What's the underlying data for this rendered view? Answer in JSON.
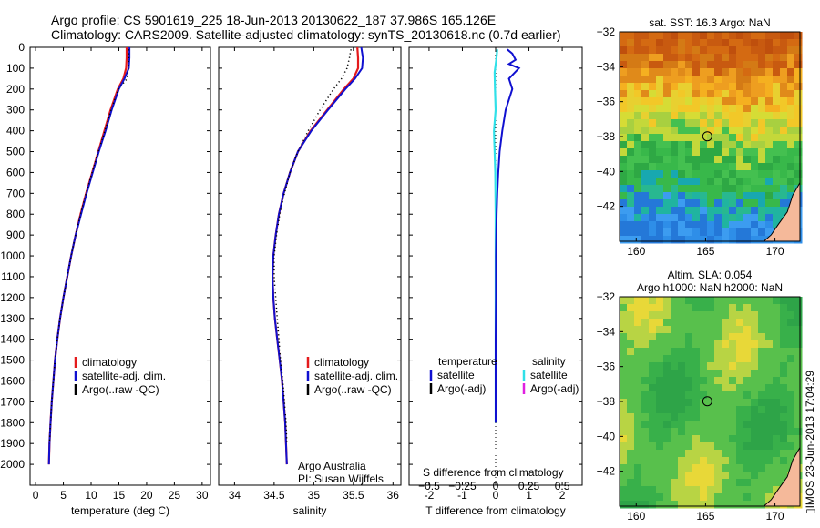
{
  "header": {
    "title_line1": "Argo profile: CS 5901619_225 18-Jun-2013 20130622_187 37.986S 165.126E",
    "title_line2": "Climatology: CARS2009. Satellite-adjusted climatology: synTS_20130618.nc (0.7d earlier)"
  },
  "colors": {
    "climatology": "#e41a1c",
    "satellite": "#1010d0",
    "argo": "#000000",
    "salinity_satellite": "#30e0e8",
    "salinity_argo": "#e020e0",
    "land": "#f5b99a"
  },
  "chart_data": [
    {
      "name_id": "temperature",
      "type": "line",
      "xlabel": "temperature (deg C)",
      "ylabel": "",
      "xlim": [
        -1,
        31.5
      ],
      "ylim": [
        2100,
        0
      ],
      "xticks": [
        0,
        5,
        10,
        15,
        20,
        25,
        30
      ],
      "yticks": [
        0,
        100,
        200,
        300,
        400,
        500,
        600,
        700,
        800,
        900,
        1000,
        1100,
        1200,
        1300,
        1400,
        1500,
        1600,
        1700,
        1800,
        1900,
        2000
      ],
      "legend": [
        "climatology",
        "satellite-adj. clim.",
        "Argo(..raw -QC)"
      ],
      "legend_position": "lower-right",
      "series": [
        {
          "name": "climatology",
          "x": [
            16.4,
            16.4,
            16.3,
            15.8,
            14.8,
            13.5,
            12.4,
            11.3,
            10.2,
            9.1,
            8.1,
            7.2,
            6.4,
            5.7,
            5.0,
            4.4,
            3.9,
            3.5,
            3.2,
            2.9,
            2.7,
            2.5,
            2.4
          ],
          "y": [
            0,
            50,
            100,
            150,
            200,
            300,
            400,
            500,
            600,
            700,
            800,
            900,
            1000,
            1100,
            1200,
            1300,
            1400,
            1500,
            1600,
            1700,
            1800,
            1900,
            2000
          ]
        },
        {
          "name": "satellite-adj. clim.",
          "x": [
            16.9,
            16.9,
            16.8,
            16.0,
            15.0,
            13.7,
            12.6,
            11.4,
            10.3,
            9.2,
            8.2,
            7.2,
            6.4,
            5.7,
            5.0,
            4.4,
            3.9,
            3.5,
            3.2,
            2.9,
            2.7,
            2.5,
            2.4
          ],
          "y": [
            0,
            50,
            100,
            150,
            200,
            300,
            400,
            500,
            600,
            700,
            800,
            900,
            1000,
            1100,
            1200,
            1300,
            1400,
            1500,
            1600,
            1700,
            1800,
            1900,
            2000
          ]
        },
        {
          "name": "Argo(..raw -QC)",
          "x": [
            16.8,
            16.8,
            16.7,
            16.5,
            14.9,
            13.6,
            12.5,
            11.3,
            10.2,
            9.1,
            8.1,
            7.2,
            6.4,
            5.7,
            5.0,
            4.4,
            3.9,
            3.5,
            3.2,
            2.9,
            2.7,
            2.5
          ],
          "y": [
            10,
            50,
            100,
            150,
            200,
            300,
            400,
            500,
            600,
            700,
            800,
            900,
            1000,
            1100,
            1200,
            1300,
            1400,
            1500,
            1600,
            1700,
            1800,
            1900
          ]
        }
      ]
    },
    {
      "name_id": "salinity",
      "type": "line",
      "xlabel": "salinity",
      "ylabel": "",
      "xlim": [
        33.8,
        36.1
      ],
      "ylim": [
        2100,
        0
      ],
      "xticks": [
        34,
        34.5,
        35,
        35.5,
        36
      ],
      "xtick_labels": [
        "34",
        "34.5",
        "35",
        "35.5",
        "36"
      ],
      "legend": [
        "climatology",
        "satellite-adj. clim.",
        "Argo(..raw -QC)"
      ],
      "legend_position": "lower-right",
      "annotations": [
        "Argo Australia",
        "PI: Susan Wijffels"
      ],
      "series": [
        {
          "name": "climatology",
          "x": [
            35.55,
            35.56,
            35.56,
            35.5,
            35.38,
            35.17,
            34.96,
            34.8,
            34.7,
            34.62,
            34.56,
            34.52,
            34.49,
            34.48,
            34.49,
            34.51,
            34.54,
            34.57,
            34.6,
            34.62,
            34.64,
            34.65,
            34.66
          ],
          "y": [
            0,
            50,
            100,
            150,
            200,
            300,
            400,
            500,
            600,
            700,
            800,
            900,
            1000,
            1100,
            1200,
            1300,
            1400,
            1500,
            1600,
            1700,
            1800,
            1900,
            2000
          ]
        },
        {
          "name": "satellite-adj. clim.",
          "x": [
            35.6,
            35.62,
            35.61,
            35.52,
            35.4,
            35.18,
            34.97,
            34.8,
            34.7,
            34.62,
            34.56,
            34.52,
            34.49,
            34.48,
            34.49,
            34.51,
            34.54,
            34.57,
            34.6,
            34.62,
            34.64,
            34.65,
            34.66
          ],
          "y": [
            0,
            50,
            100,
            150,
            200,
            300,
            400,
            500,
            600,
            700,
            800,
            900,
            1000,
            1100,
            1200,
            1300,
            1400,
            1500,
            1600,
            1700,
            1800,
            1900,
            2000
          ]
        },
        {
          "name": "Argo(..raw -QC)",
          "x": [
            35.47,
            35.45,
            35.42,
            35.35,
            35.25,
            35.08,
            34.93,
            34.8,
            34.7,
            34.63,
            34.57,
            34.53,
            34.5,
            34.5,
            34.52,
            34.54,
            34.56,
            34.58,
            34.61,
            34.63,
            34.65,
            34.66
          ],
          "y": [
            10,
            50,
            100,
            150,
            200,
            300,
            400,
            500,
            600,
            700,
            800,
            900,
            1000,
            1100,
            1200,
            1300,
            1400,
            1500,
            1600,
            1700,
            1800,
            1900
          ]
        }
      ]
    },
    {
      "name_id": "difference",
      "type": "line",
      "xlabel": "T difference from climatology",
      "xlabel_top": "S difference from climatology",
      "xlim": [
        -2.6,
        2.6
      ],
      "ylim": [
        2100,
        0
      ],
      "xticks": [
        -2,
        -1,
        0,
        1,
        2
      ],
      "xticks_top": [
        -0.5,
        -0.25,
        0,
        0.25,
        0.5
      ],
      "xtick_labels_top": [
        "−0.5",
        "−0.25",
        "0",
        "0.25",
        "0.5"
      ],
      "legend_left": {
        "title": "temperature",
        "items": [
          "satellite",
          "Argo(-adj)"
        ]
      },
      "legend_right": {
        "title": "salinity",
        "items": [
          "satellite",
          "Argo(-adj)"
        ]
      },
      "series": [
        {
          "name": "temperature satellite",
          "x": [
            0.35,
            0.5,
            0.6,
            0.4,
            0.7,
            0.4,
            0.5,
            0.3,
            0.2,
            0.12,
            0.08,
            0.05,
            0.03,
            0.02,
            0.01,
            0.01,
            0.0,
            0.0,
            0.0,
            0.0,
            0.0
          ],
          "y": [
            10,
            30,
            60,
            80,
            100,
            150,
            200,
            300,
            400,
            500,
            600,
            700,
            800,
            900,
            1000,
            1200,
            1400,
            1500,
            1600,
            1700,
            1800
          ]
        },
        {
          "name": "salinity satellite",
          "x": [
            0.05,
            0.02,
            -0.03,
            -0.02,
            0.0,
            -0.05,
            -0.04,
            -0.03,
            -0.01,
            0.0,
            0.0,
            0.0,
            0.0,
            0.0,
            0.0,
            0.0
          ],
          "y": [
            10,
            60,
            120,
            200,
            300,
            400,
            450,
            500,
            600,
            800,
            1000,
            1200,
            1400,
            1500,
            1600,
            1800
          ]
        },
        {
          "name": "temperature Argo(-adj)",
          "x": [
            0.0,
            0.0,
            0.0,
            0.0,
            0.0,
            0.0,
            0.0,
            0.0,
            0.0,
            0.0,
            0.0,
            0.0,
            0.0,
            0.0
          ],
          "y": [
            1800,
            1830,
            1860,
            1890,
            1920,
            1950,
            1980,
            2000,
            2010,
            2020,
            2030,
            2040,
            2050,
            2060
          ]
        }
      ]
    },
    {
      "name_id": "sst_map",
      "type": "heatmap",
      "title": "sat. SST: 16.3 Argo: NaN",
      "xlim": [
        158.8,
        171.8
      ],
      "ylim": [
        -44,
        -32
      ],
      "xticks": [
        160,
        165,
        170
      ],
      "yticks": [
        -32,
        -34,
        -36,
        -38,
        -40,
        -42
      ],
      "marker": {
        "lon": 165.126,
        "lat": -37.986
      }
    },
    {
      "name_id": "sla_map",
      "type": "heatmap",
      "title_line1": "Altim. SLA: 0.054",
      "title_line2": "Argo h1000: NaN h2000: NaN",
      "xlim": [
        158.8,
        171.8
      ],
      "ylim": [
        -44,
        -32
      ],
      "xticks": [
        160,
        165,
        170
      ],
      "yticks": [
        -32,
        -34,
        -36,
        -38,
        -40,
        -42
      ],
      "marker": {
        "lon": 165.126,
        "lat": -37.986
      }
    }
  ],
  "footer": {
    "side_text": "▯IMOS 23-Jun-2013 17:04:29"
  }
}
